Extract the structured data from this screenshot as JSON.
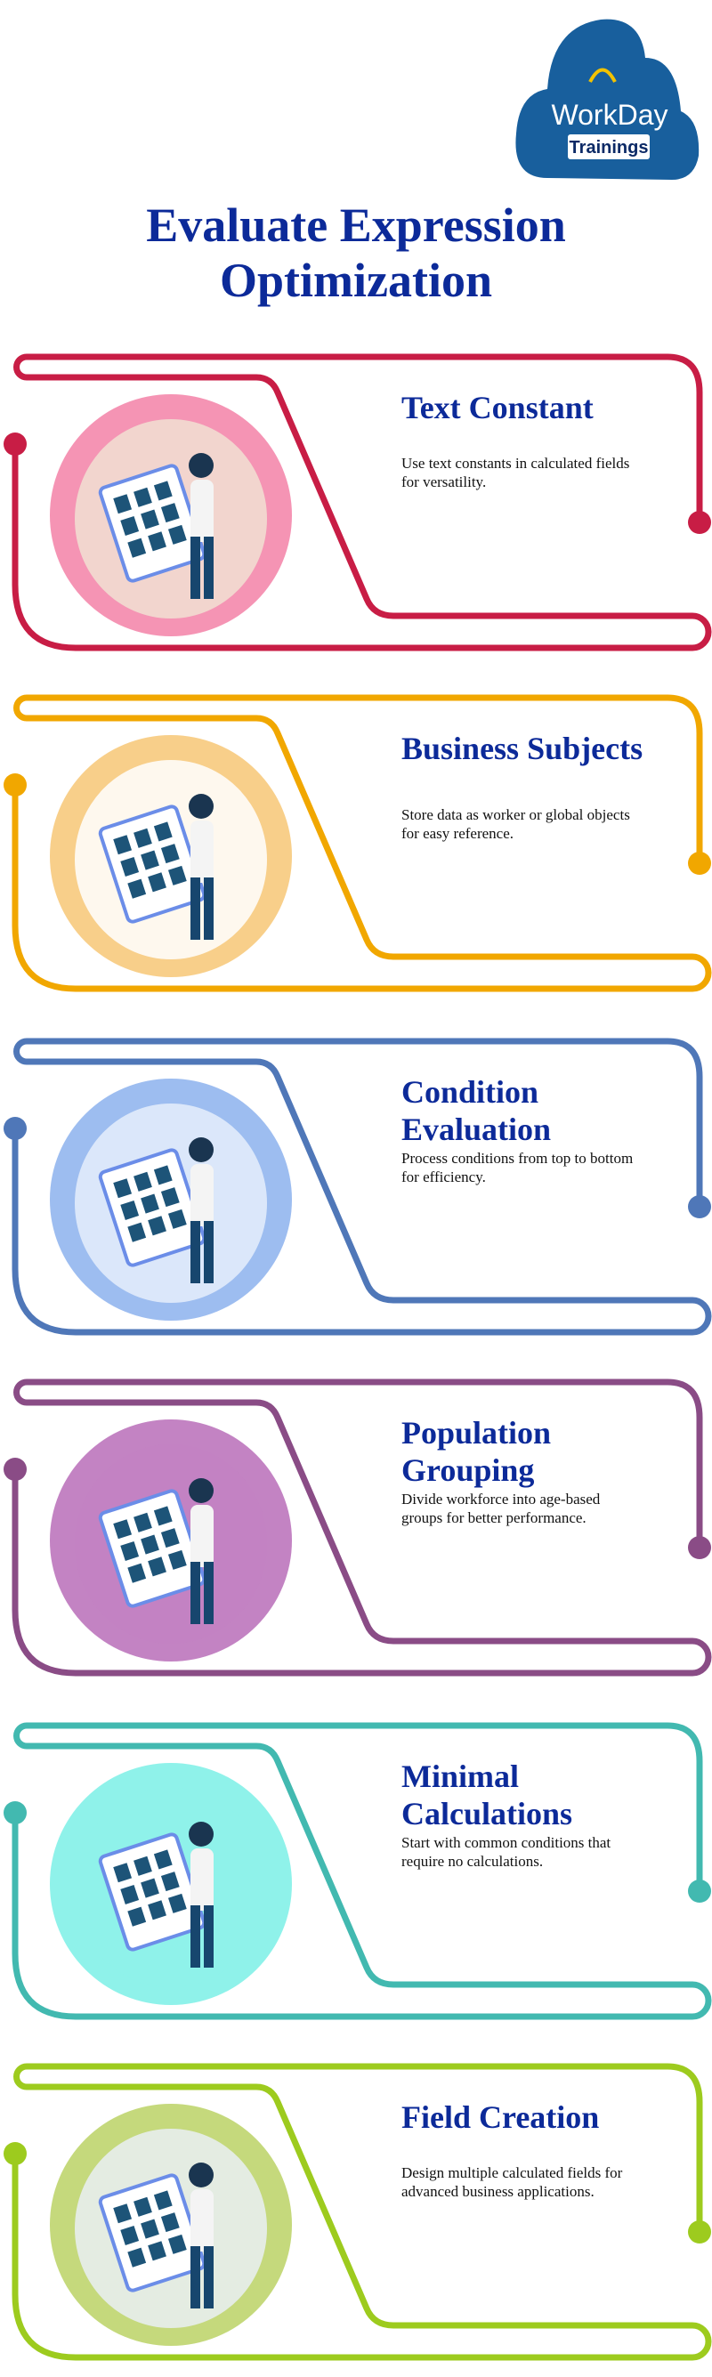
{
  "logo": {
    "brand": "WorkDay",
    "sub": "Trainings",
    "color": "#185f9d"
  },
  "title": {
    "line1": "Evaluate Expression",
    "line2": "Optimization",
    "color": "#0c2a99"
  },
  "sections": [
    {
      "title": "Text Constant",
      "desc": "Use text constants in calculated fields for versatility.",
      "color": "#c81d45",
      "fill": "#f594b4",
      "inner": "#f1e1d2",
      "icon": "calculator-person-icon"
    },
    {
      "title": "Business Subjects",
      "desc": "Store data as worker or global objects for easy reference.",
      "color": "#f1a700",
      "fill": "#f8cf8a",
      "inner": "#ffffff",
      "icon": "data-objects-icon"
    },
    {
      "title": "Condition Evaluation",
      "desc": "Process conditions from top to bottom for efficiency.",
      "color": "#4f77b8",
      "fill": "#9dbdf0",
      "inner": "#e6effb",
      "icon": "evaluation-checklist-icon"
    },
    {
      "title": "Population Grouping",
      "desc": "Divide workforce into age-based groups for better performance.",
      "color": "#8a4c86",
      "fill": "#c383c3",
      "inner": "#c383c3",
      "icon": "thumbs-up-worker-icon"
    },
    {
      "title": "Minimal Calculations",
      "desc": "Start with common conditions that require no calculations.",
      "color": "#42b9b0",
      "fill": "#8ff2ea",
      "inner": "#8ff2ea",
      "icon": "compliance-checklist-icon"
    },
    {
      "title": "Field Creation",
      "desc": "Design multiple calculated fields for advanced business applications.",
      "color": "#9dcb1e",
      "fill": "#c5d97c",
      "inner": "#e9eef5",
      "icon": "growth-chart-icon"
    }
  ]
}
